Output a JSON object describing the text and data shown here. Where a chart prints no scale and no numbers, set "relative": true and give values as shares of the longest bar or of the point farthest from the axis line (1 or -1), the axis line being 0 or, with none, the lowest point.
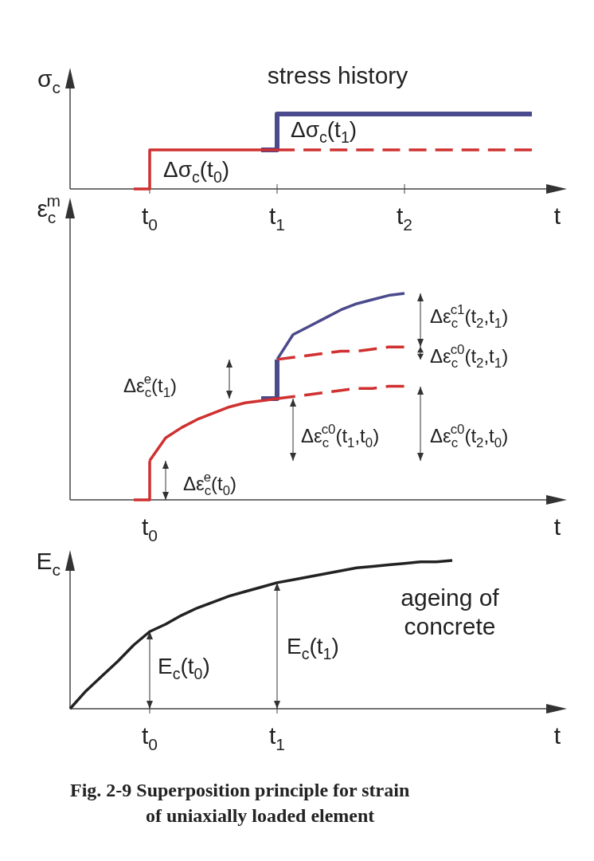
{
  "chart_data": [
    {
      "type": "line",
      "title": "stress history",
      "ylabel": "σ$_{c}$",
      "xlabel": "t",
      "relative": true,
      "tick_labels": "x",
      "categories": [
        null,
        null,
        null,
        null,
        null,
        "t$_{0}$",
        null,
        null,
        null,
        null,
        null,
        null,
        null,
        "t$_{1}$",
        null,
        null,
        null,
        null,
        null,
        null,
        null,
        "t$_{2}$",
        null,
        null,
        null,
        null,
        null,
        null,
        null,
        null
      ],
      "series": [
        {
          "type": "step",
          "color": "#4a4a8c",
          "values": [
            null,
            null,
            null,
            null,
            null,
            null,
            null,
            null,
            null,
            null,
            null,
            null,
            0.52,
            1,
            1,
            1,
            1,
            1,
            1,
            1,
            1,
            1,
            1,
            1,
            1,
            1,
            1,
            1,
            1,
            1
          ]
        },
        {
          "type": "step",
          "color": "#d03030",
          "values": [
            null,
            null,
            null,
            null,
            0,
            0.52,
            0.52,
            0.52,
            0.52,
            0.52,
            0.52,
            0.52,
            0.52,
            0.52,
            null,
            null,
            null,
            null,
            null,
            null,
            null,
            null,
            null,
            null,
            null,
            null,
            null,
            null,
            null,
            null
          ]
        },
        {
          "color": "#d03030",
          "line_style": "dashed",
          "values": [
            null,
            null,
            null,
            null,
            null,
            null,
            null,
            null,
            null,
            null,
            null,
            null,
            null,
            0.52,
            0.52,
            0.52,
            0.52,
            0.52,
            0.52,
            0.52,
            0.52,
            0.52,
            0.52,
            0.52,
            0.52,
            0.52,
            0.52,
            0.52,
            0.52,
            0.52
          ]
        }
      ],
      "annotations": [
        "Δσ$_{c}$(t$_{0}$)",
        "Δσ$_{c}$(t$_{1}$)"
      ]
    },
    {
      "type": "line",
      "ylabel": "ε$_{c}$$^{m}$",
      "xlabel": "t",
      "relative": true,
      "tick_labels": "x",
      "categories": [
        null,
        null,
        null,
        null,
        null,
        null,
        null,
        null,
        null,
        null,
        null,
        null,
        null,
        null,
        null,
        null,
        null,
        null,
        null,
        null,
        null,
        null,
        null,
        null,
        null,
        null,
        null,
        null,
        null,
        null
      ],
      "series": [
        {
          "type": "step",
          "color": "#4a4a8c",
          "values": [
            null,
            null,
            null,
            null,
            null,
            null,
            null,
            null,
            null,
            null,
            null,
            null,
            0.49,
            0.68,
            null,
            null,
            null,
            null,
            null,
            null,
            null,
            null,
            null,
            null,
            null,
            null,
            null,
            null,
            null,
            null
          ]
        },
        {
          "color": "#4a4a8c",
          "values": [
            null,
            null,
            null,
            null,
            null,
            null,
            null,
            null,
            null,
            null,
            null,
            null,
            null,
            0.68,
            0.8,
            0.84,
            0.88,
            0.92,
            0.95,
            0.97,
            0.99,
            1,
            null,
            null,
            null,
            null,
            null,
            null,
            null,
            null
          ]
        },
        {
          "type": "step",
          "color": "#d03030",
          "values": [
            null,
            null,
            null,
            null,
            0,
            0.19,
            null,
            null,
            null,
            null,
            null,
            null,
            null,
            null,
            null,
            null,
            null,
            null,
            null,
            null,
            null,
            null,
            null,
            null,
            null,
            null,
            null,
            null,
            null,
            null
          ]
        },
        {
          "color": "#d03030",
          "values": [
            null,
            null,
            null,
            null,
            null,
            0.19,
            0.3,
            0.35,
            0.39,
            0.42,
            0.45,
            0.47,
            0.48,
            0.49,
            null,
            null,
            null,
            null,
            null,
            null,
            null,
            null,
            null,
            null,
            null,
            null,
            null,
            null,
            null,
            null
          ]
        },
        {
          "color": "#d03030",
          "line_style": "dashed",
          "values": [
            null,
            null,
            null,
            null,
            null,
            null,
            null,
            null,
            null,
            null,
            null,
            null,
            null,
            0.49,
            0.5,
            0.51,
            0.52,
            0.53,
            0.54,
            0.54,
            0.55,
            0.55,
            null,
            null,
            null,
            null,
            null,
            null,
            null,
            null
          ]
        },
        {
          "color": "#d03030",
          "line_style": "dashed",
          "values": [
            null,
            null,
            null,
            null,
            null,
            null,
            null,
            null,
            null,
            null,
            null,
            null,
            null,
            0.68,
            0.69,
            0.7,
            0.71,
            0.72,
            0.72,
            0.73,
            0.74,
            0.74,
            null,
            null,
            null,
            null,
            null,
            null,
            null,
            null
          ]
        }
      ],
      "annotations": [
        "t$_{0}$",
        "Δε$_{c}$$^{e}$(t$_{0}$)",
        "Δε$_{c}$$^{e}$(t$_{1}$)",
        "Δε$_{c}$$^{c0}$(t$_{1}$,t$_{0}$)",
        "Δε$_{c}$$^{c0}$(t$_{2}$,t$_{0}$)",
        "Δε$_{c}$$^{c0}$(t$_{2}$,t$_{1}$)",
        "Δε$_{c}$$^{c1}$(t$_{2}$,t$_{1}$)"
      ]
    },
    {
      "type": "line",
      "ylabel": "E$_{c}$",
      "xlabel": "t",
      "relative": true,
      "tick_labels": "x",
      "categories": [
        null,
        null,
        null,
        null,
        null,
        "t$_{0}$",
        null,
        null,
        null,
        null,
        null,
        null,
        null,
        "t$_{1}$",
        null,
        null,
        null,
        null,
        null,
        null,
        null,
        null,
        null,
        null,
        null,
        null,
        null,
        null,
        null,
        null
      ],
      "series": [
        {
          "color": "#222222",
          "values": [
            0,
            0.12,
            0.22,
            0.32,
            0.43,
            0.52,
            0.57,
            0.63,
            0.68,
            0.72,
            0.76,
            0.79,
            0.82,
            0.85,
            0.87,
            0.89,
            0.91,
            0.93,
            0.95,
            0.96,
            0.97,
            0.98,
            0.99,
            0.99,
            1,
            null,
            null,
            null,
            null,
            null
          ]
        }
      ],
      "annotations": [
        "ageing of concrete",
        "E$_{c}$(t$_{0}$)",
        "E$_{c}$(t$_{1}$)",
        "Fig.  2-9 Superposition principle for strain of uniaxially loaded element"
      ]
    }
  ]
}
